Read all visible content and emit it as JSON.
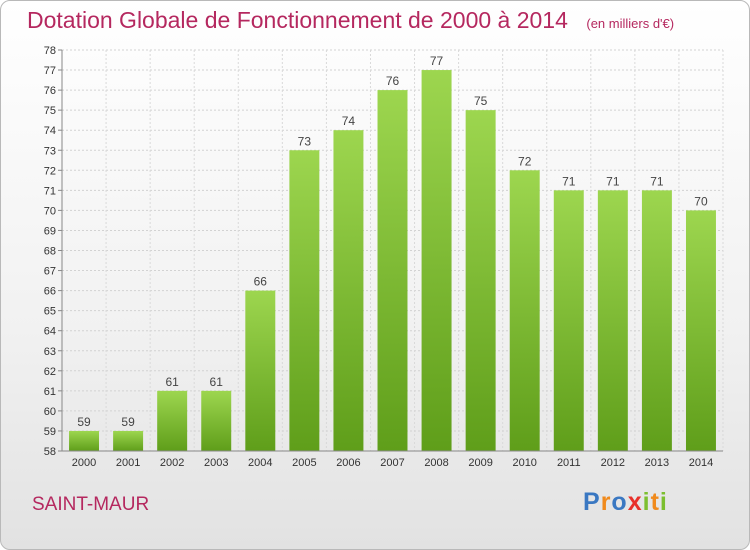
{
  "title": "Dotation Globale de Fonctionnement de 2000 à 2014",
  "unit_label": "(en milliers d'€)",
  "commune": "SAINT-MAUR",
  "logo": {
    "text": "Proxiti",
    "letters": [
      {
        "ch": "P",
        "color": "#3a78c2"
      },
      {
        "ch": "r",
        "color": "#f08a1c"
      },
      {
        "ch": "o",
        "color": "#3a78c2"
      },
      {
        "ch": "x",
        "color": "#e8302a"
      },
      {
        "ch": "i",
        "color": "#7cbf2f"
      },
      {
        "ch": "t",
        "color": "#f08a1c"
      },
      {
        "ch": "i",
        "color": "#7cbf2f"
      }
    ]
  },
  "chart_data": {
    "type": "bar",
    "categories": [
      "2000",
      "2001",
      "2002",
      "2003",
      "2004",
      "2005",
      "2006",
      "2007",
      "2008",
      "2009",
      "2010",
      "2011",
      "2012",
      "2013",
      "2014"
    ],
    "values": [
      59,
      59,
      61,
      61,
      66,
      73,
      74,
      76,
      77,
      75,
      72,
      71,
      71,
      71,
      70
    ],
    "ylim": [
      58,
      78
    ],
    "yticks": [
      58,
      59,
      60,
      61,
      62,
      63,
      64,
      65,
      66,
      67,
      68,
      69,
      70,
      71,
      72,
      73,
      74,
      75,
      76,
      77,
      78
    ],
    "grid": true,
    "bar_color": "#7cc032"
  }
}
